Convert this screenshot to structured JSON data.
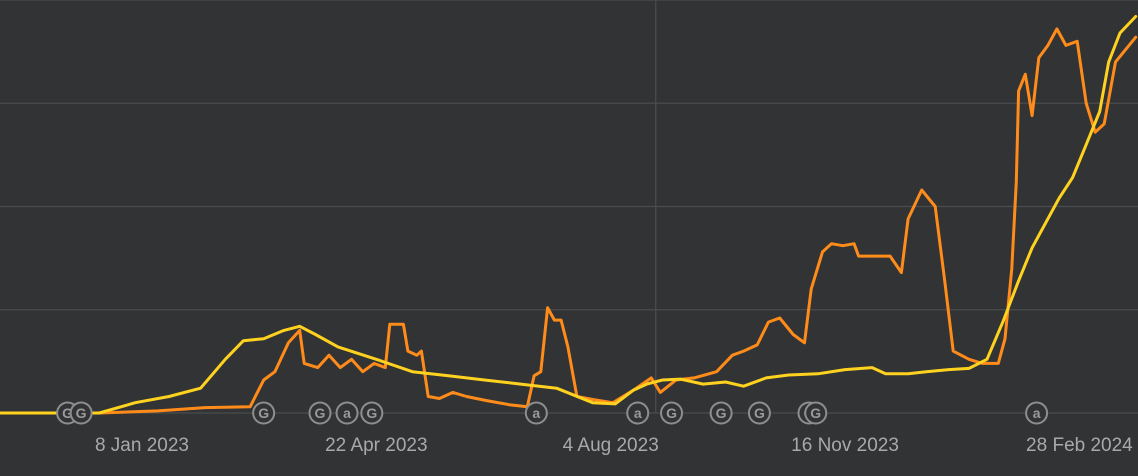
{
  "chart_data": {
    "type": "line",
    "title": "",
    "xlabel": "",
    "ylabel": "",
    "x_range": [
      "2022-11-06",
      "2024-03-25"
    ],
    "y_range": [
      0,
      100
    ],
    "grid": true,
    "legend": "none",
    "x_ticks": [
      {
        "date": "2023-01-08",
        "label": "8 Jan 2023"
      },
      {
        "date": "2023-04-22",
        "label": "22 Apr 2023"
      },
      {
        "date": "2023-08-04",
        "label": "4 Aug 2023"
      },
      {
        "date": "2023-11-16",
        "label": "16 Nov 2023"
      },
      {
        "date": "2024-02-28",
        "label": "28 Feb 2024"
      }
    ],
    "y_gridlines": [
      0,
      25,
      50,
      75,
      100
    ],
    "x_gridlines": [
      "2023-08-24"
    ],
    "series": [
      {
        "color": "#ff8c1a",
        "points": [
          [
            "2022-11-06",
            0
          ],
          [
            "2022-12-20",
            0
          ],
          [
            "2023-01-15",
            0.5
          ],
          [
            "2023-02-05",
            1.3
          ],
          [
            "2023-02-25",
            1.5
          ],
          [
            "2023-03-03",
            8
          ],
          [
            "2023-03-08",
            10
          ],
          [
            "2023-03-14",
            17
          ],
          [
            "2023-03-19",
            20
          ],
          [
            "2023-03-21",
            12
          ],
          [
            "2023-03-27",
            11
          ],
          [
            "2023-04-01",
            14
          ],
          [
            "2023-04-06",
            11
          ],
          [
            "2023-04-11",
            13
          ],
          [
            "2023-04-16",
            10
          ],
          [
            "2023-04-21",
            12
          ],
          [
            "2023-04-26",
            11
          ],
          [
            "2023-04-28",
            21.5
          ],
          [
            "2023-05-04",
            21.5
          ],
          [
            "2023-05-06",
            15
          ],
          [
            "2023-05-10",
            14
          ],
          [
            "2023-05-12",
            15
          ],
          [
            "2023-05-15",
            4
          ],
          [
            "2023-05-20",
            3.5
          ],
          [
            "2023-05-26",
            5
          ],
          [
            "2023-06-01",
            4
          ],
          [
            "2023-06-10",
            3
          ],
          [
            "2023-06-20",
            2
          ],
          [
            "2023-06-28",
            1.5
          ],
          [
            "2023-07-01",
            9
          ],
          [
            "2023-07-04",
            10
          ],
          [
            "2023-07-07",
            25.5
          ],
          [
            "2023-07-10",
            22.5
          ],
          [
            "2023-07-13",
            22.5
          ],
          [
            "2023-07-16",
            16
          ],
          [
            "2023-07-20",
            4
          ],
          [
            "2023-07-28",
            3.2
          ],
          [
            "2023-08-05",
            2.5
          ],
          [
            "2023-08-14",
            5.5
          ],
          [
            "2023-08-22",
            8.5
          ],
          [
            "2023-08-26",
            5
          ],
          [
            "2023-09-02",
            8
          ],
          [
            "2023-09-10",
            8.5
          ],
          [
            "2023-09-20",
            10
          ],
          [
            "2023-09-27",
            14
          ],
          [
            "2023-10-02",
            15
          ],
          [
            "2023-10-08",
            16.5
          ],
          [
            "2023-10-13",
            22
          ],
          [
            "2023-10-18",
            23
          ],
          [
            "2023-10-24",
            19
          ],
          [
            "2023-10-29",
            17
          ],
          [
            "2023-11-01",
            30
          ],
          [
            "2023-11-06",
            39
          ],
          [
            "2023-11-10",
            41
          ],
          [
            "2023-11-15",
            40.5
          ],
          [
            "2023-11-20",
            41
          ],
          [
            "2023-11-22",
            38
          ],
          [
            "2023-11-29",
            38
          ],
          [
            "2023-12-06",
            38
          ],
          [
            "2023-12-11",
            34
          ],
          [
            "2023-12-14",
            47
          ],
          [
            "2023-12-20",
            54
          ],
          [
            "2023-12-26",
            50
          ],
          [
            "2023-12-30",
            33
          ],
          [
            "2024-01-03",
            15
          ],
          [
            "2024-01-10",
            13
          ],
          [
            "2024-01-16",
            12
          ],
          [
            "2024-01-23",
            12
          ],
          [
            "2024-01-26",
            18
          ],
          [
            "2024-01-29",
            35
          ],
          [
            "2024-01-31",
            56
          ],
          [
            "2024-02-01",
            78
          ],
          [
            "2024-02-04",
            82
          ],
          [
            "2024-02-07",
            72
          ],
          [
            "2024-02-10",
            86
          ],
          [
            "2024-02-14",
            89
          ],
          [
            "2024-02-18",
            93
          ],
          [
            "2024-02-22",
            89
          ],
          [
            "2024-02-27",
            90
          ],
          [
            "2024-03-02",
            75
          ],
          [
            "2024-03-06",
            68
          ],
          [
            "2024-03-10",
            70
          ],
          [
            "2024-03-15",
            85
          ],
          [
            "2024-03-21",
            89
          ],
          [
            "2024-03-24",
            91
          ]
        ]
      },
      {
        "color": "#ffd21f",
        "points": [
          [
            "2022-11-06",
            0
          ],
          [
            "2022-12-20",
            0
          ],
          [
            "2023-01-05",
            2.5
          ],
          [
            "2023-01-20",
            4
          ],
          [
            "2023-02-03",
            6
          ],
          [
            "2023-02-14",
            13
          ],
          [
            "2023-02-22",
            17.5
          ],
          [
            "2023-03-03",
            18
          ],
          [
            "2023-03-12",
            20
          ],
          [
            "2023-03-19",
            21
          ],
          [
            "2023-03-26",
            19
          ],
          [
            "2023-04-05",
            16
          ],
          [
            "2023-04-22",
            13
          ],
          [
            "2023-05-08",
            10
          ],
          [
            "2023-05-24",
            9
          ],
          [
            "2023-06-09",
            8
          ],
          [
            "2023-06-25",
            7
          ],
          [
            "2023-07-11",
            6
          ],
          [
            "2023-07-27",
            2.5
          ],
          [
            "2023-08-06",
            2.2
          ],
          [
            "2023-08-14",
            5.5
          ],
          [
            "2023-08-20",
            7
          ],
          [
            "2023-08-27",
            8
          ],
          [
            "2023-09-04",
            8.2
          ],
          [
            "2023-09-14",
            7
          ],
          [
            "2023-09-24",
            7.5
          ],
          [
            "2023-10-02",
            6.5
          ],
          [
            "2023-10-12",
            8.5
          ],
          [
            "2023-10-22",
            9.2
          ],
          [
            "2023-11-04",
            9.5
          ],
          [
            "2023-11-16",
            10.5
          ],
          [
            "2023-11-28",
            11
          ],
          [
            "2023-12-04",
            9.5
          ],
          [
            "2023-12-14",
            9.5
          ],
          [
            "2023-12-22",
            10
          ],
          [
            "2024-01-01",
            10.5
          ],
          [
            "2024-01-10",
            10.8
          ],
          [
            "2024-01-18",
            13
          ],
          [
            "2024-01-25",
            22
          ],
          [
            "2024-02-01",
            32
          ],
          [
            "2024-02-07",
            40
          ],
          [
            "2024-02-13",
            46
          ],
          [
            "2024-02-19",
            52
          ],
          [
            "2024-02-25",
            57
          ],
          [
            "2024-03-02",
            65
          ],
          [
            "2024-03-08",
            73
          ],
          [
            "2024-03-12",
            85
          ],
          [
            "2024-03-17",
            92
          ],
          [
            "2024-03-24",
            96
          ]
        ]
      }
    ],
    "annotations": [
      {
        "date": "2022-12-06",
        "text": "G"
      },
      {
        "date": "2022-12-12",
        "text": "G"
      },
      {
        "date": "2023-03-03",
        "text": "G"
      },
      {
        "date": "2023-03-28",
        "text": "G"
      },
      {
        "date": "2023-04-09",
        "text": "a"
      },
      {
        "date": "2023-04-20",
        "text": "G"
      },
      {
        "date": "2023-07-02",
        "text": "a"
      },
      {
        "date": "2023-08-16",
        "text": "a"
      },
      {
        "date": "2023-08-31",
        "text": "G"
      },
      {
        "date": "2023-09-22",
        "text": "G"
      },
      {
        "date": "2023-10-09",
        "text": "G"
      },
      {
        "date": "2023-10-31",
        "text": "G"
      },
      {
        "date": "2023-11-03",
        "text": "G"
      },
      {
        "date": "2024-02-09",
        "text": "a"
      }
    ]
  }
}
